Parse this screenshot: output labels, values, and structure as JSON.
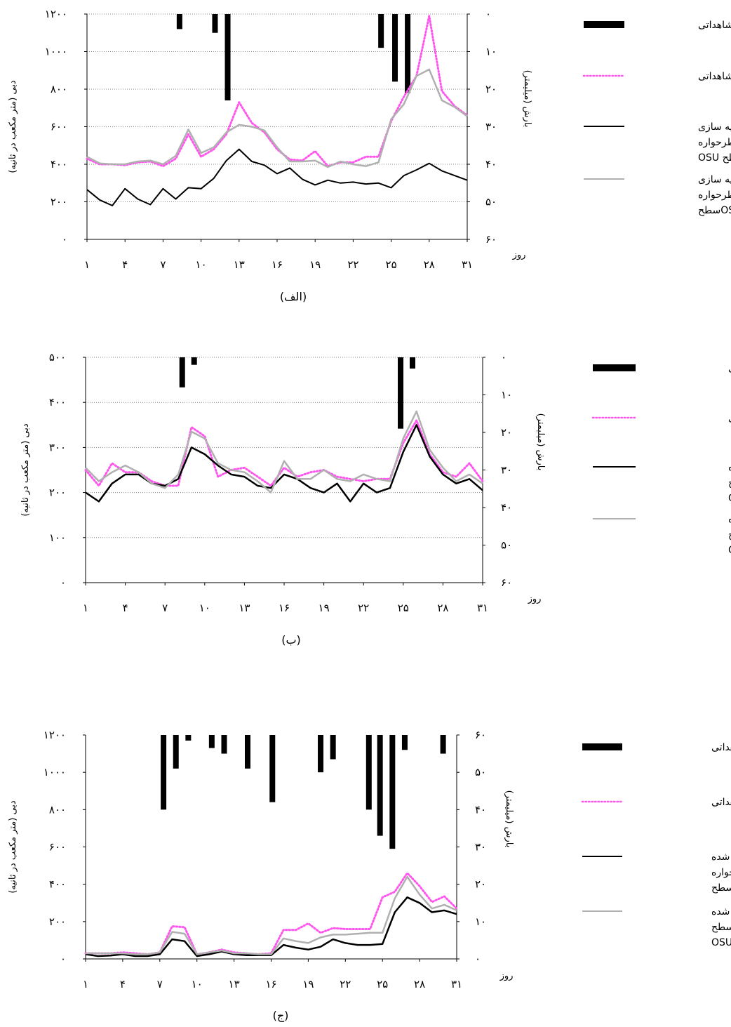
{
  "chart_data": [
    {
      "type": "line",
      "panel_label": "(الف)",
      "ylabel": "دبی (متر مکعب در ثانیه)",
      "y2label": "بارش (میلیمتر)",
      "xlabel": "روز",
      "ylim": [
        0,
        1200
      ],
      "yticks": [
        "۰",
        "۲۰۰",
        "۴۰۰",
        "۶۰۰",
        "۸۰۰",
        "۱۰۰۰",
        "۱۲۰۰"
      ],
      "y2lim": [
        0,
        60
      ],
      "y2ticks": [
        "۰",
        "۱۰",
        "۲۰",
        "۳۰",
        "۴۰",
        "۵۰",
        "۶۰"
      ],
      "xlim": [
        1,
        31
      ],
      "xticks": [
        1,
        4,
        7,
        10,
        13,
        16,
        19,
        22,
        25,
        28,
        31
      ],
      "xtick_labels": [
        "۱",
        "۴",
        "۷",
        "۱۰",
        "۱۳",
        "۱۶",
        "۱۹",
        "۲۲",
        "۲۵",
        "۲۸",
        "۳۱"
      ],
      "grid": true,
      "legend_position": "right",
      "rain": [
        {
          "day": 8.3,
          "mm": 4
        },
        {
          "day": 11.1,
          "mm": 5
        },
        {
          "day": 12.1,
          "mm": 23
        },
        {
          "day": 24.2,
          "mm": 9
        },
        {
          "day": 25.3,
          "mm": 18
        },
        {
          "day": 26.3,
          "mm": 21
        }
      ],
      "series": [
        {
          "name": "بارش مشاهداتی",
          "kind": "bar",
          "color": "#000000"
        },
        {
          "name": "دبی مشاهداتی",
          "kind": "dotted",
          "color": "#ff55ee",
          "values": [
            430,
            400,
            400,
            395,
            410,
            415,
            390,
            430,
            560,
            440,
            480,
            560,
            730,
            620,
            570,
            480,
            425,
            420,
            470,
            390,
            410,
            410,
            440,
            440,
            630,
            760,
            870,
            1190,
            790,
            710,
            660
          ]
        },
        {
          "name": "دبی شبیه سازی شده طرحواره سطح OSU",
          "kind": "line",
          "color": "#000000",
          "width": 2,
          "values": [
            265,
            210,
            180,
            270,
            215,
            185,
            270,
            215,
            275,
            270,
            325,
            420,
            480,
            415,
            395,
            350,
            380,
            320,
            290,
            315,
            300,
            305,
            295,
            300,
            275,
            340,
            370,
            405,
            365,
            340,
            315
          ]
        },
        {
          "name": "دبی شبیه سازی شده طرحواره سطح OSU-SIM",
          "kind": "line",
          "color": "#b0b0b0",
          "width": 2.5,
          "values": [
            440,
            405,
            400,
            400,
            415,
            420,
            400,
            445,
            585,
            460,
            490,
            570,
            610,
            600,
            580,
            490,
            415,
            415,
            420,
            385,
            415,
            400,
            390,
            410,
            640,
            720,
            870,
            905,
            740,
            705,
            655
          ]
        }
      ],
      "legend_text": [
        [
          "بارش مشاهداتی"
        ],
        [
          "دبی مشاهداتی"
        ],
        [
          "دبی شبیه سازی",
          "شده طرحواره",
          "سطح  OSU"
        ],
        [
          "دبی شبیه سازی",
          "شده طرحواره",
          "OSU-SIMسطح"
        ]
      ]
    },
    {
      "type": "line",
      "panel_label": "(ب)",
      "ylabel": "دبی (متر مکعب در ثانیه)",
      "y2label": "بارش (میلیمتر)",
      "xlabel": "روز",
      "ylim": [
        0,
        500
      ],
      "yticks": [
        "۰",
        "۱۰۰",
        "۲۰۰",
        "۳۰۰",
        "۴۰۰",
        "۵۰۰"
      ],
      "y2lim": [
        0,
        60
      ],
      "y2ticks": [
        "۰",
        "۱۰",
        "۲۰",
        "۳۰",
        "۴۰",
        "۵۰",
        "۶۰"
      ],
      "xlim": [
        1,
        31
      ],
      "xticks": [
        1,
        4,
        7,
        10,
        13,
        16,
        19,
        22,
        25,
        28,
        31
      ],
      "xtick_labels": [
        "۱",
        "۴",
        "۷",
        "۱۰",
        "۱۳",
        "۱۶",
        "۱۹",
        "۲۲",
        "۲۵",
        "۲۸",
        "۳۱"
      ],
      "grid": true,
      "legend_position": "right",
      "rain": [
        {
          "day": 8.3,
          "mm": 8
        },
        {
          "day": 9.2,
          "mm": 2
        },
        {
          "day": 24.8,
          "mm": 19
        },
        {
          "day": 25.7,
          "mm": 3
        }
      ],
      "series": [
        {
          "name": "بارش مشاهداتی",
          "kind": "bar",
          "color": "#000000"
        },
        {
          "name": "دبی مشاهداتی",
          "kind": "dotted",
          "color": "#ff55ee",
          "values": [
            250,
            215,
            265,
            245,
            245,
            225,
            215,
            215,
            345,
            325,
            235,
            250,
            255,
            235,
            215,
            255,
            235,
            245,
            250,
            235,
            230,
            225,
            230,
            230,
            310,
            360,
            285,
            245,
            235,
            265,
            225
          ]
        },
        {
          "name": "دبی شبیه سازی شده طرحواره سطح OSU",
          "kind": "line",
          "color": "#000000",
          "width": 2.5,
          "values": [
            200,
            180,
            220,
            240,
            240,
            220,
            215,
            230,
            300,
            285,
            260,
            240,
            235,
            215,
            210,
            240,
            230,
            210,
            200,
            220,
            180,
            220,
            200,
            210,
            290,
            350,
            280,
            240,
            220,
            230,
            205
          ]
        },
        {
          "name": "دبی شبیه سازی شده طرحواره سطح OSU-SIM",
          "kind": "line",
          "color": "#b0b0b0",
          "width": 2.5,
          "values": [
            255,
            225,
            245,
            260,
            245,
            220,
            210,
            240,
            335,
            320,
            265,
            250,
            245,
            225,
            200,
            270,
            230,
            230,
            250,
            230,
            225,
            240,
            230,
            225,
            320,
            380,
            295,
            255,
            225,
            240,
            220
          ]
        }
      ],
      "legend_text": [
        [
          "بارش مشاهداتی"
        ],
        [
          "دبی مشاهداتی"
        ],
        [
          "دبی شبیه سازی شده",
          "طرحواره سطح",
          "OSU"
        ],
        [
          "دبی شبیه سازی شده",
          "طرحواره سطح",
          "OSU-SIM"
        ]
      ]
    },
    {
      "type": "line",
      "panel_label": "(ج)",
      "ylabel": "دبی (متر مکعب در ثانیه)",
      "y2label": "بارش (میلیمتر)",
      "xlabel": "روز",
      "ylim": [
        0,
        1200
      ],
      "yticks": [
        "۰",
        "۲۰۰",
        "۴۰۰",
        "۶۰۰",
        "۸۰۰",
        "۱۰۰۰",
        "۱۲۰۰"
      ],
      "y2lim": [
        0,
        60
      ],
      "y2ticks": [
        "۶۰",
        "۵۰",
        "۴۰",
        "۳۰",
        "۲۰",
        "۱۰",
        "۰"
      ],
      "xlim": [
        1,
        31
      ],
      "xticks": [
        1,
        4,
        7,
        10,
        13,
        16,
        19,
        22,
        25,
        28,
        31
      ],
      "xtick_labels": [
        "۱",
        "۴",
        "۷",
        "۱۰",
        "۱۳",
        "۱۶",
        "۱۹",
        "۲۲",
        "۲۵",
        "۲۸",
        "۳۱"
      ],
      "grid": false,
      "legend_position": "right",
      "rain": [
        {
          "day": 7.3,
          "mm": 20
        },
        {
          "day": 8.3,
          "mm": 9
        },
        {
          "day": 9.3,
          "mm": 1.5
        },
        {
          "day": 11.2,
          "mm": 3.5
        },
        {
          "day": 12.2,
          "mm": 5
        },
        {
          "day": 14.1,
          "mm": 9
        },
        {
          "day": 16.1,
          "mm": 18
        },
        {
          "day": 20.0,
          "mm": 10
        },
        {
          "day": 21.0,
          "mm": 6.5
        },
        {
          "day": 23.9,
          "mm": 20
        },
        {
          "day": 24.8,
          "mm": 27
        },
        {
          "day": 25.8,
          "mm": 30.5
        },
        {
          "day": 26.8,
          "mm": 4
        },
        {
          "day": 29.9,
          "mm": 5
        }
      ],
      "series": [
        {
          "name": "بارش مشاهداتی",
          "kind": "bar",
          "color": "#000000"
        },
        {
          "name": "دبی مشاهداتی",
          "kind": "dotted",
          "color": "#ff55ee",
          "values": [
            30,
            30,
            30,
            35,
            30,
            25,
            35,
            175,
            170,
            25,
            35,
            50,
            35,
            30,
            25,
            30,
            155,
            155,
            190,
            140,
            165,
            160,
            160,
            160,
            330,
            360,
            460,
            390,
            305,
            335,
            270
          ]
        },
        {
          "name": "دبی شبیه سازی شده طرحواره سطح OSU",
          "kind": "line",
          "color": "#000000",
          "width": 2.5,
          "values": [
            25,
            15,
            18,
            25,
            15,
            15,
            25,
            105,
            95,
            15,
            25,
            40,
            25,
            20,
            20,
            20,
            75,
            60,
            50,
            65,
            105,
            85,
            75,
            75,
            80,
            250,
            330,
            300,
            250,
            260,
            240
          ]
        },
        {
          "name": "دبی شبیه سازی شده طرحواره سطح OSU-SIM",
          "kind": "line",
          "color": "#b0b0b0",
          "width": 2.5,
          "values": [
            30,
            30,
            30,
            30,
            25,
            25,
            35,
            145,
            135,
            25,
            35,
            45,
            30,
            30,
            25,
            25,
            110,
            95,
            85,
            115,
            130,
            130,
            135,
            140,
            140,
            325,
            440,
            345,
            270,
            290,
            260
          ]
        }
      ],
      "legend_text": [
        [
          "بارش مشاهداتی"
        ],
        [
          "دبی مشاهداتی"
        ],
        [
          "دبی شبیه سازی شده",
          "طرحواره",
          "OSUسطح"
        ],
        [
          "دبی شبیه سازی شده",
          "طرحواره سطح",
          "OSU-SIM"
        ]
      ]
    }
  ]
}
